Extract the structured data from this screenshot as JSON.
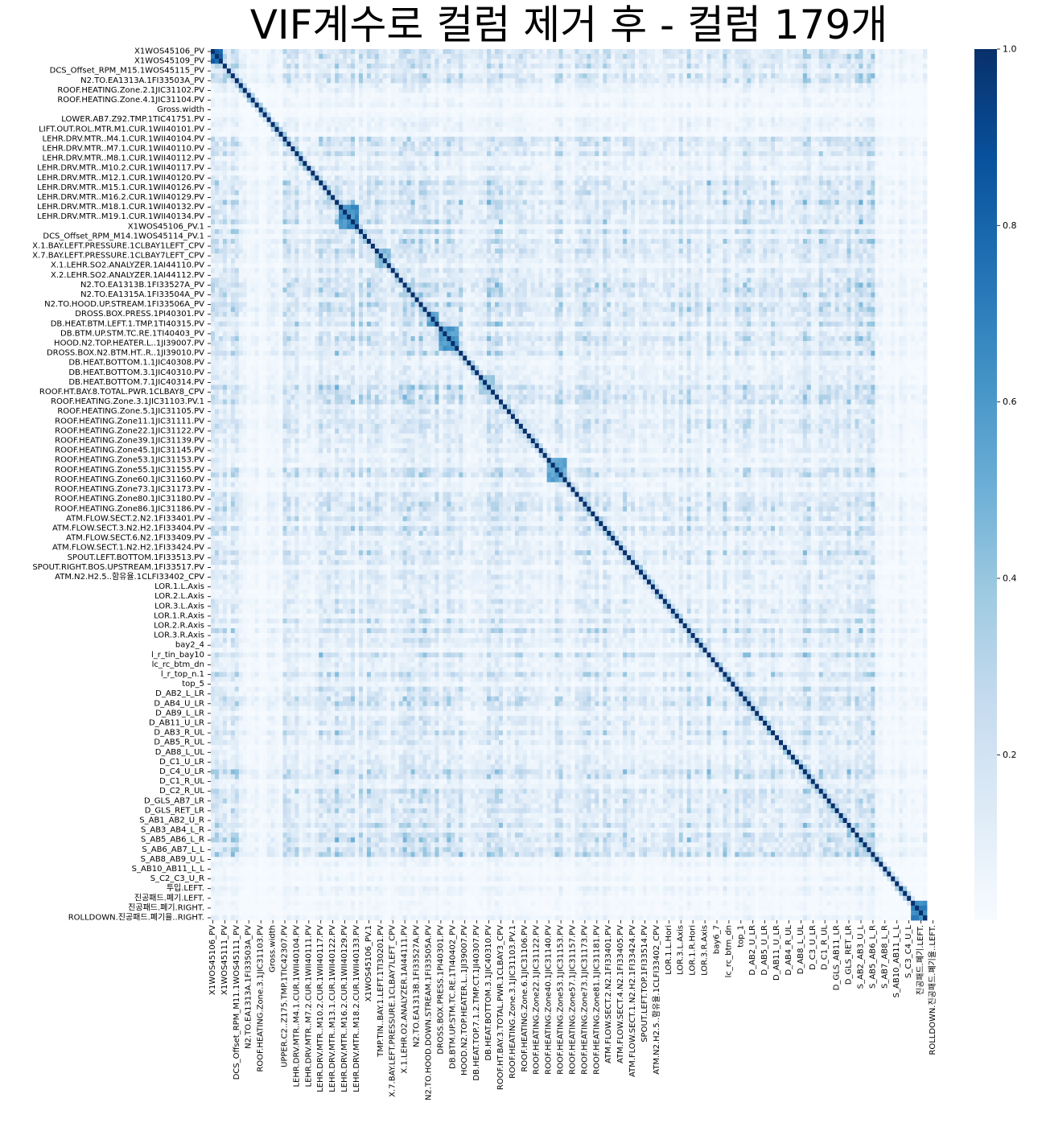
{
  "chart_data": {
    "type": "heatmap",
    "title": "VIF계수로 컬럼 제거 후 - 컬럼 179개",
    "n_columns": 179,
    "colormap": "Blues",
    "colors": {
      "low": "#f7fbff",
      "mid": "#6baed6",
      "high": "#08306b"
    },
    "value_range": [
      0,
      1
    ],
    "colorbar_ticks": [
      "0.2",
      "0.4",
      "0.6",
      "0.8",
      "1.0"
    ],
    "colorbar_tick_values": [
      0.2,
      0.4,
      0.6,
      0.8,
      1.0
    ],
    "y_tick_labels": [
      "X1WOS45106_PV",
      "X1WOS45109_PV",
      "DCS_Offset_RPM_M15.1WOS45115_PV",
      "N2.TO.EA1313A.1FI33503A_PV",
      "ROOF.HEATING.Zone.2.1JIC31102.PV",
      "ROOF.HEATING.Zone.4.1JIC31104.PV",
      "Gross.width",
      "LOWER.AB7.Z92.TMP.1TIC41751.PV",
      "LIFT.OUT.ROL.MTR.M1.CUR.1WII40101.PV",
      "LEHR.DRV.MTR..M4.1.CUR.1WII40104.PV",
      "LEHR.DRV.MTR..M7.1.CUR.1WII40110.PV",
      "LEHR.DRV.MTR..M8.1.CUR.1WII40112.PV",
      "LEHR.DRV.MTR..M10.2.CUR.1WII40117.PV",
      "LEHR.DRV.MTR..M12.1.CUR.1WII40120.PV",
      "LEHR.DRV.MTR..M15.1.CUR.1WII40126.PV",
      "LEHR.DRV.MTR..M16.2.CUR.1WII40129.PV",
      "LEHR.DRV.MTR..M18.1.CUR.1WII40132.PV",
      "LEHR.DRV.MTR..M19.1.CUR.1WII40134.PV",
      "X1WOS45106_PV.1",
      "DCS_Offset_RPM_M14.1WOS45114_PV.1",
      "X.1.BAY.LEFT.PRESSURE.1CLBAY1LEFT_CPV",
      "X.7.BAY.LEFT.PRESSURE.1CLBAY7LEFT_CPV",
      "X.1.LEHR.SO2.ANALYZER.1AI44110.PV",
      "X.2.LEHR.SO2.ANALYZER.1AI44112.PV",
      "N2.TO.EA1313B.1FI33527A_PV",
      "N2.TO.EA1315A.1FI33504A_PV",
      "N2.TO.HOOD.UP.STREAM.1FI33506A_PV",
      "DROSS.BOX.PRESS.1PI40301.PV",
      "DB.HEAT.BTM.LEFT.1.TMP.1TI40315.PV",
      "DB.BTM.UP.STM.TC.RE.1TI40403_PV",
      "HOOD.N2.TOP.HEATER.L..1JI39007.PV",
      "DROSS.BOX.N2.BTM.HT..R..1JI39010.PV",
      "DB.HEAT.BOTTOM.1.1JIC40308.PV",
      "DB.HEAT.BOTTOM.3.1JIC40310.PV",
      "DB.HEAT.BOTTOM.7.1JIC40314.PV",
      "ROOF.HT.BAY.8.TOTAL.PWR.1CLBAY8_CPV",
      "ROOF.HEATING.Zone.3.1JIC31103.PV.1",
      "ROOF.HEATING.Zone.5.1JIC31105.PV",
      "ROOF.HEATING.Zone11.1JIC31111.PV",
      "ROOF.HEATING.Zone22.1JIC31122.PV",
      "ROOF.HEATING.Zone39.1JIC31139.PV",
      "ROOF.HEATING.Zone45.1JIC31145.PV",
      "ROOF.HEATING.Zone53.1JIC31153.PV",
      "ROOF.HEATING.Zone55.1JIC31155.PV",
      "ROOF.HEATING.Zone60.1JIC31160.PV",
      "ROOF.HEATING.Zone73.1JIC31173.PV",
      "ROOF.HEATING.Zone80.1JIC31180.PV",
      "ROOF.HEATING.Zone86.1JIC31186.PV",
      "ATM.FLOW.SECT.2.N2.1FI33401.PV",
      "ATM.FLOW.SECT.3.N2.H2.1FI33404.PV",
      "ATM.FLOW.SECT.6.N2.1FI33409.PV",
      "ATM.FLOW.SECT.1.N2.H2.1FI33424.PV",
      "SPOUT.LEFT.BOTTOM.1FI33513.PV",
      "SPOUT.RIGHT.BOS.UPSTREAM.1FI33517.PV",
      "ATM.N2.H2.5..함유율.1CLFI33402_CPV",
      "LOR.1.L.Axis",
      "LOR.2.L.Axis",
      "LOR.3.L.Axis",
      "LOR.1.R.Axis",
      "LOR.2.R.Axis",
      "LOR.3.R.Axis",
      "bay2_4",
      "l_r_tin_bay10",
      "lc_rc_btm_dn",
      "l_r_top_n.1",
      "top_5",
      "D_AB2_L_LR",
      "D_AB4_U_LR",
      "D_AB9_L_LR",
      "D_AB11_U_LR",
      "D_AB3_R_UL",
      "D_AB5_R_UL",
      "D_AB8_L_UL",
      "D_C1_U_LR",
      "D_C4_U_LR",
      "D_C1_R_UL",
      "D_C2_R_UL",
      "D_GLS_AB7_LR",
      "D_GLS_RET_LR",
      "S_AB1_AB2_U_R",
      "S_AB3_AB4_L_R",
      "S_AB5_AB6_L_R",
      "S_AB6_AB7_L_L",
      "S_AB8_AB9_U_L",
      "S_AB10_AB11_L_L",
      "S_C2_C3_U_R",
      "투입.LEFT.",
      "진공패드.폐기.LEFT.",
      "진공패드.폐기.RIGHT.",
      "ROLLDOWN.진공패드.폐기율..RIGHT."
    ],
    "x_tick_labels": [
      "X1WOS45106_PV",
      "X1WOS45111_PV",
      "DCS_Offset_RPM_M11.1WOS45111_PV",
      "N2.TO.EA1313A.1FI33503A_PV",
      "ROOF.HEATING.Zone.3.1JIC31103.PV",
      "Gross.width",
      "UPPER.C2..Z175.TMP.1TIC42307.PV",
      "LEHR.DRV.MTR..M4.1.CUR.1WII40104.PV",
      "LEHR.DRV.MTR..M7.2.CUR.1WII40111.PV",
      "LEHR.DRV.MTR..M10.2.CUR.1WII40117.PV",
      "LEHR.DRV.MTR..M13.1.CUR.1WII40122.PV",
      "LEHR.DRV.MTR..M16.2.CUR.1WII40129.PV",
      "LEHR.DRV.MTR..M18.2.CUR.1WII40133.PV",
      "X1WOS45106_PV.1",
      "TMP.TIN..BAY.1.LEFT.1TI30201.PV",
      "X.7.BAY.LEFT.PRESSURE.1CLBAY7LEFT_CPV",
      "X.1.LEHR.O2.ANALYZER.1AI44111.PV",
      "N2.TO.EA1313B.1FI33527A.PV",
      "N2.TO.HOOD.DOWN.STREAM.1FI33505A.PV",
      "DROSS.BOX.PRESS.1PI40301.PV",
      "DB.BTM.UP.STM.TC.RE.1TI40402_PV",
      "HOOD.N2.TOP.HEATER.L..1JI39007.PV",
      "DB.HEAT.TOP.7.1.2.TMP.CT.1JI40307.PV",
      "DB.HEAT.BOTTOM.3.1JIC40310.PV",
      "ROOF.HT.BAY.3.TOTAL.PWR.1CLBAY3_CPV",
      "ROOF.HEATING.Zone.3.1JIC31103.PV.1",
      "ROOF.HEATING.Zone.6.1JIC31106.PV",
      "ROOF.HEATING.Zone22.1JIC31122.PV",
      "ROOF.HEATING.Zone40.1JIC31140.PV",
      "ROOF.HEATING.Zone53.1JIC31153.PV",
      "ROOF.HEATING.Zone57.1JIC31157.PV",
      "ROOF.HEATING.Zone73.1JIC31173.PV",
      "ROOF.HEATING.Zone81.1JIC31181.PV",
      "ATM.FLOW.SECT.2.N2.1FI33401.PV",
      "ATM.FLOW.SECT.4.N2.1FI33405.PV",
      "ATM.FLOW.SECT.1.N2.H2.1FI33424.PV",
      "SPOUT.LEFT.TOP.1FI33514.PV",
      "ATM.N2.H2.5..함유율.1CLFI33402_CPV",
      "LOR.1.L.Hori",
      "LOR.3.L.Axis",
      "LOR.1.R.Hori",
      "LOR.3.R.Axis",
      "bay6_7",
      "lc_rc_btm_dn",
      "top_1",
      "D_AB2_U_LR",
      "D_AB5_U_LR",
      "D_AB11_U_LR",
      "D_AB4_R_UL",
      "D_AB8_L_UL",
      "D_C3_U_LR",
      "D_C1_R_UL",
      "D_GLS_AB11_LR",
      "D_GLS_RET_LR",
      "S_AB2_AB3_U_L",
      "S_AB5_AB6_L_R",
      "S_AB7_AB8_L_R",
      "S_AB10_AB11_L_L",
      "S_C3_C4_U_L",
      "진공패드.폐기.LEFT.",
      "ROLLDOWN.진공패드.폐기율..LEFT."
    ]
  }
}
